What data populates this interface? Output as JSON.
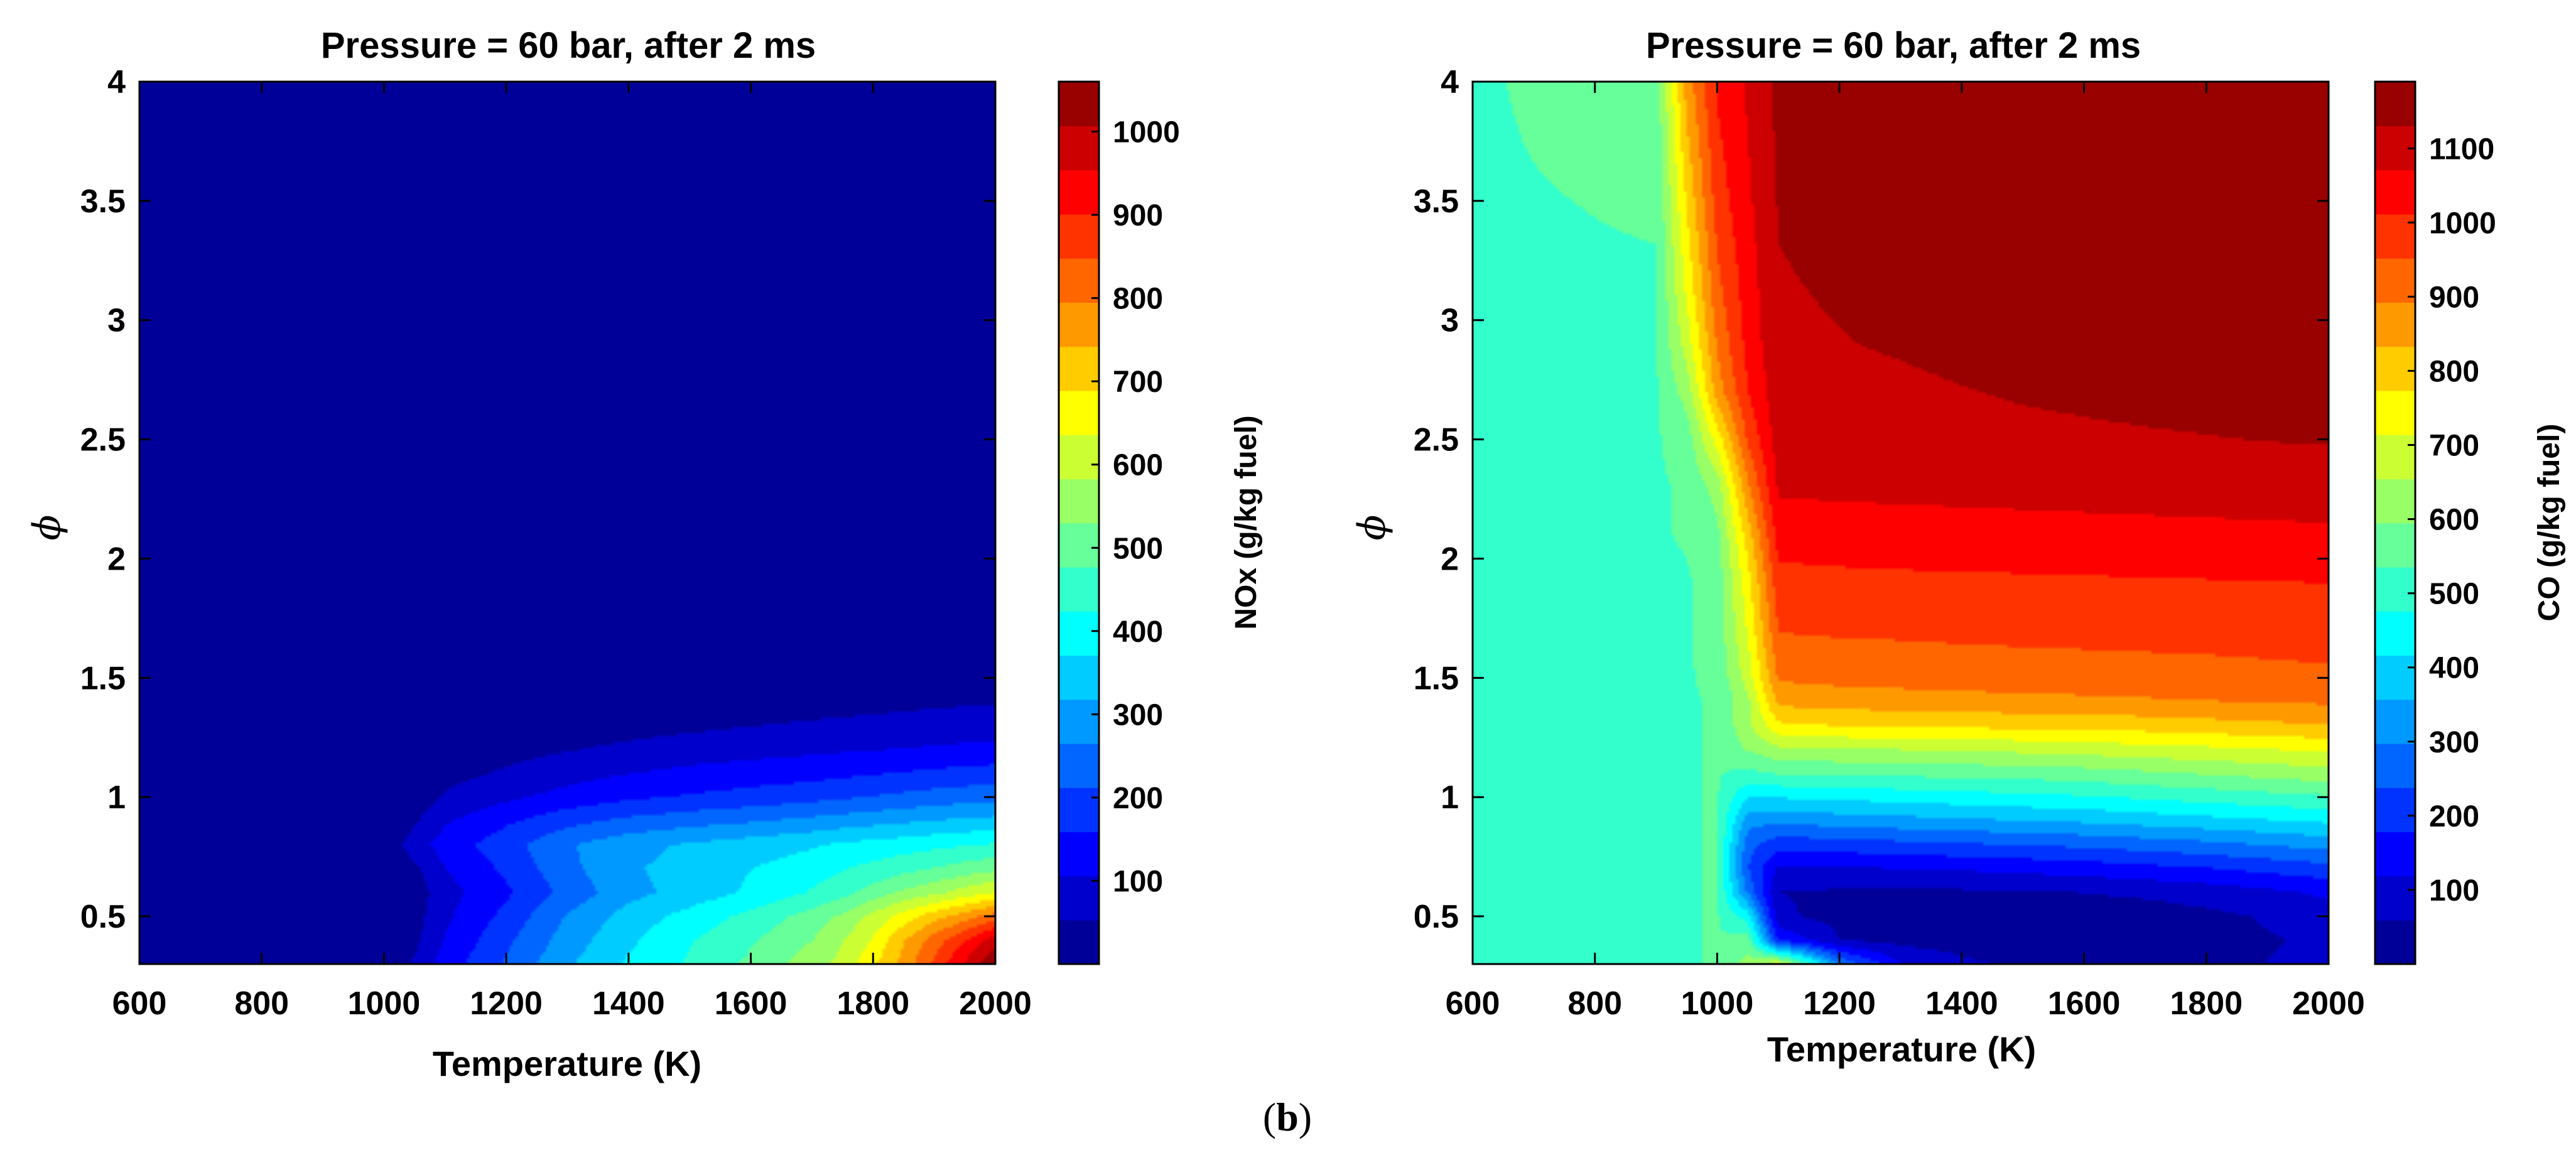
{
  "caption": {
    "open": "(",
    "letter": "b",
    "close": ")"
  },
  "chart_data": [
    {
      "type": "heatmap",
      "title": "Pressure = 60 bar, after 2 ms",
      "xlabel": "Temperature (K)",
      "ylabel": "ϕ",
      "xlim": [
        600,
        2000
      ],
      "ylim": [
        0.3,
        4
      ],
      "xticks": [
        "600",
        "800",
        "1000",
        "1200",
        "1400",
        "1600",
        "1800",
        "2000"
      ],
      "yticks": [
        "0.5",
        "1",
        "1.5",
        "2",
        "2.5",
        "3",
        "3.5",
        "4"
      ],
      "colorbar": {
        "label": "NOx (g/kg fuel)",
        "range": [
          0,
          1060
        ],
        "ticks": [
          "100",
          "200",
          "300",
          "400",
          "500",
          "600",
          "700",
          "800",
          "900",
          "1000"
        ],
        "levels": 20
      },
      "x": [
        600,
        1000,
        1050,
        1100,
        1200,
        1300,
        1400,
        1500,
        1600,
        1700,
        1750,
        1800,
        1850,
        1900,
        2000
      ],
      "y": [
        0.3,
        0.4,
        0.5,
        0.6,
        0.7,
        0.8,
        0.9,
        1.0,
        1.1,
        1.2,
        1.3,
        1.4,
        1.5,
        1.6,
        2.0,
        4.0
      ],
      "z": [
        [
          0,
          0,
          60,
          130,
          220,
          310,
          380,
          430,
          490,
          560,
          600,
          680,
          760,
          860,
          1060
        ],
        [
          0,
          0,
          40,
          110,
          200,
          290,
          360,
          420,
          470,
          530,
          580,
          640,
          740,
          820,
          980
        ],
        [
          0,
          0,
          30,
          95,
          175,
          270,
          340,
          390,
          440,
          500,
          540,
          600,
          660,
          720,
          820
        ],
        [
          0,
          0,
          25,
          85,
          150,
          230,
          300,
          340,
          380,
          430,
          460,
          500,
          540,
          570,
          640
        ],
        [
          0,
          0,
          40,
          105,
          170,
          250,
          310,
          340,
          370,
          400,
          420,
          440,
          460,
          480,
          520
        ],
        [
          0,
          15,
          80,
          130,
          190,
          260,
          300,
          325,
          345,
          365,
          380,
          390,
          400,
          410,
          430
        ],
        [
          0,
          0,
          45,
          100,
          150,
          195,
          225,
          245,
          260,
          280,
          290,
          300,
          310,
          320,
          335
        ],
        [
          0,
          0,
          20,
          60,
          95,
          125,
          150,
          165,
          180,
          195,
          205,
          215,
          225,
          235,
          250
        ],
        [
          0,
          0,
          10,
          35,
          60,
          85,
          105,
          120,
          130,
          140,
          148,
          155,
          162,
          170,
          182
        ],
        [
          0,
          0,
          0,
          15,
          35,
          50,
          65,
          78,
          88,
          96,
          100,
          104,
          108,
          112,
          120
        ],
        [
          0,
          0,
          0,
          0,
          12,
          22,
          32,
          42,
          52,
          60,
          64,
          68,
          72,
          76,
          82
        ],
        [
          0,
          0,
          0,
          0,
          0,
          5,
          12,
          18,
          24,
          30,
          33,
          36,
          40,
          44,
          50
        ],
        [
          0,
          0,
          0,
          0,
          0,
          0,
          0,
          5,
          8,
          12,
          14,
          16,
          18,
          20,
          25
        ],
        [
          0,
          0,
          0,
          0,
          0,
          0,
          0,
          0,
          0,
          0,
          2,
          4,
          5,
          6,
          8
        ],
        [
          0,
          0,
          0,
          0,
          0,
          0,
          0,
          0,
          0,
          0,
          0,
          0,
          0,
          0,
          0
        ],
        [
          0,
          0,
          0,
          0,
          0,
          0,
          0,
          0,
          0,
          0,
          0,
          0,
          0,
          0,
          0
        ]
      ]
    },
    {
      "type": "heatmap",
      "title": "Pressure = 60 bar, after 2 ms",
      "xlabel": "Temperature (K)",
      "ylabel": "ϕ",
      "xlim": [
        600,
        2000
      ],
      "ylim": [
        0.3,
        4
      ],
      "xticks": [
        "600",
        "800",
        "1000",
        "1200",
        "1400",
        "1600",
        "1800",
        "2000"
      ],
      "yticks": [
        "0.5",
        "1",
        "1.5",
        "2",
        "2.5",
        "3",
        "3.5",
        "4"
      ],
      "colorbar": {
        "label": "CO (g/kg fuel)",
        "range": [
          0,
          1190
        ],
        "ticks": [
          "100",
          "200",
          "300",
          "400",
          "500",
          "600",
          "700",
          "800",
          "900",
          "1000",
          "1100"
        ],
        "levels": 20
      },
      "x": [
        600,
        900,
        950,
        1000,
        1050,
        1100,
        1200,
        1300,
        1400,
        1500,
        1600,
        1700,
        1800,
        1900,
        2000
      ],
      "y": [
        0.3,
        0.4,
        0.5,
        0.6,
        0.7,
        0.8,
        0.9,
        1.0,
        1.1,
        1.2,
        1.3,
        1.4,
        1.5,
        1.7,
        1.9,
        2.1,
        2.3,
        2.5,
        2.7,
        2.9,
        3.1,
        3.5,
        4.0
      ],
      "z": [
        [
          530,
          530,
          530,
          540,
          620,
          700,
          300,
          120,
          70,
          50,
          40,
          40,
          40,
          60,
          80
        ],
        [
          530,
          530,
          530,
          540,
          560,
          180,
          60,
          40,
          35,
          30,
          30,
          30,
          40,
          55,
          70
        ],
        [
          530,
          530,
          530,
          540,
          450,
          70,
          40,
          35,
          30,
          30,
          30,
          30,
          45,
          65,
          90
        ],
        [
          530,
          530,
          530,
          540,
          290,
          60,
          50,
          50,
          50,
          55,
          60,
          70,
          85,
          105,
          130
        ],
        [
          530,
          530,
          530,
          540,
          240,
          110,
          110,
          120,
          125,
          135,
          145,
          160,
          175,
          195,
          215
        ],
        [
          530,
          530,
          530,
          540,
          260,
          200,
          210,
          220,
          230,
          240,
          250,
          265,
          280,
          300,
          320
        ],
        [
          530,
          530,
          530,
          540,
          320,
          310,
          325,
          335,
          345,
          355,
          365,
          380,
          395,
          410,
          425
        ],
        [
          530,
          530,
          530,
          540,
          420,
          420,
          430,
          440,
          450,
          460,
          470,
          485,
          500,
          515,
          530
        ],
        [
          530,
          530,
          530,
          540,
          520,
          540,
          545,
          550,
          555,
          560,
          570,
          585,
          600,
          615,
          630
        ],
        [
          530,
          530,
          530,
          540,
          600,
          640,
          650,
          655,
          660,
          670,
          680,
          690,
          700,
          712,
          725
        ],
        [
          530,
          530,
          530,
          540,
          640,
          760,
          775,
          780,
          785,
          790,
          795,
          800,
          810,
          820,
          830
        ],
        [
          530,
          530,
          530,
          540,
          640,
          850,
          860,
          865,
          870,
          875,
          880,
          885,
          890,
          895,
          900
        ],
        [
          530,
          530,
          530,
          550,
          680,
          900,
          910,
          915,
          920,
          922,
          925,
          928,
          930,
          935,
          940
        ],
        [
          530,
          530,
          530,
          560,
          720,
          955,
          960,
          962,
          965,
          968,
          970,
          972,
          975,
          978,
          980
        ],
        [
          530,
          530,
          530,
          560,
          750,
          990,
          995,
          998,
          1000,
          1002,
          1004,
          1006,
          1008,
          1010,
          1012
        ],
        [
          530,
          530,
          540,
          580,
          800,
          1040,
          1045,
          1048,
          1050,
          1052,
          1054,
          1056,
          1058,
          1060,
          1062
        ],
        [
          530,
          530,
          540,
          620,
          880,
          1080,
          1082,
          1084,
          1086,
          1088,
          1090,
          1092,
          1094,
          1096,
          1098
        ],
        [
          530,
          530,
          560,
          740,
          960,
          1100,
          1105,
          1108,
          1112,
          1116,
          1120,
          1124,
          1128,
          1132,
          1135
        ],
        [
          530,
          530,
          620,
          860,
          1010,
          1110,
          1115,
          1120,
          1128,
          1136,
          1142,
          1148,
          1152,
          1156,
          1160
        ],
        [
          530,
          530,
          680,
          900,
          1030,
          1120,
          1128,
          1136,
          1146,
          1156,
          1164,
          1170,
          1174,
          1178,
          1182
        ],
        [
          530,
          530,
          720,
          930,
          1040,
          1125,
          1135,
          1148,
          1160,
          1170,
          1176,
          1180,
          1183,
          1186,
          1188
        ],
        [
          530,
          540,
          780,
          980,
          1060,
          1135,
          1148,
          1162,
          1172,
          1180,
          1184,
          1186,
          1188,
          1189,
          1190
        ],
        [
          530,
          560,
          860,
          1020,
          1080,
          1145,
          1158,
          1170,
          1178,
          1184,
          1187,
          1188,
          1189,
          1190,
          1190
        ]
      ]
    }
  ]
}
